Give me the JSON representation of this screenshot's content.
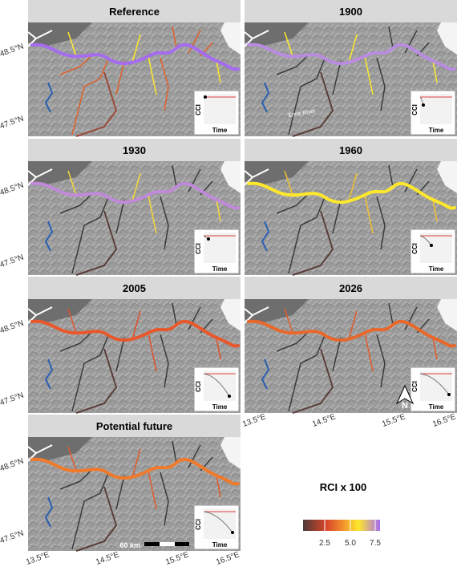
{
  "panels": [
    {
      "title": "Reference"
    },
    {
      "title": "1900"
    },
    {
      "title": "1930"
    },
    {
      "title": "1960"
    },
    {
      "title": "2005"
    },
    {
      "title": "2026"
    },
    {
      "title": "Potential future"
    }
  ],
  "axes": {
    "lat": [
      "48.5°N",
      "47.5°N"
    ],
    "lon": [
      "13.5°E",
      "14.5°E",
      "15.5°E",
      "16.5°E"
    ]
  },
  "inset": {
    "y_label": "CCI",
    "x_label": "Time"
  },
  "annotations": {
    "river": "Enns River",
    "scale": "60 km",
    "north": "N"
  },
  "legend": {
    "title": "RCI x 100",
    "ticks": [
      "2.5",
      "5.0",
      "7.5"
    ]
  }
}
